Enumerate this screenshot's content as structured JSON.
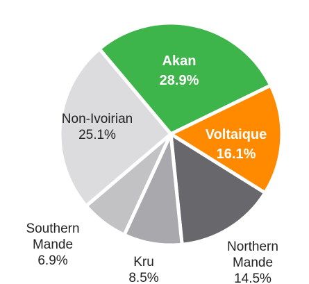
{
  "chart_data": {
    "type": "pie",
    "categories": [
      "Akan",
      "Voltaique",
      "Northern Mande",
      "Kru",
      "Southern Mande",
      "Non-Ivoirian"
    ],
    "values": [
      28.9,
      16.1,
      14.5,
      8.5,
      6.9,
      25.1
    ],
    "value_labels": [
      "28.9%",
      "16.1%",
      "14.5%",
      "8.5%",
      "6.9%",
      "25.1%"
    ],
    "colors": [
      "#3db54a",
      "#ff8a00",
      "#68686c",
      "#a9a9ad",
      "#c2c2c5",
      "#dcdcdf"
    ]
  }
}
